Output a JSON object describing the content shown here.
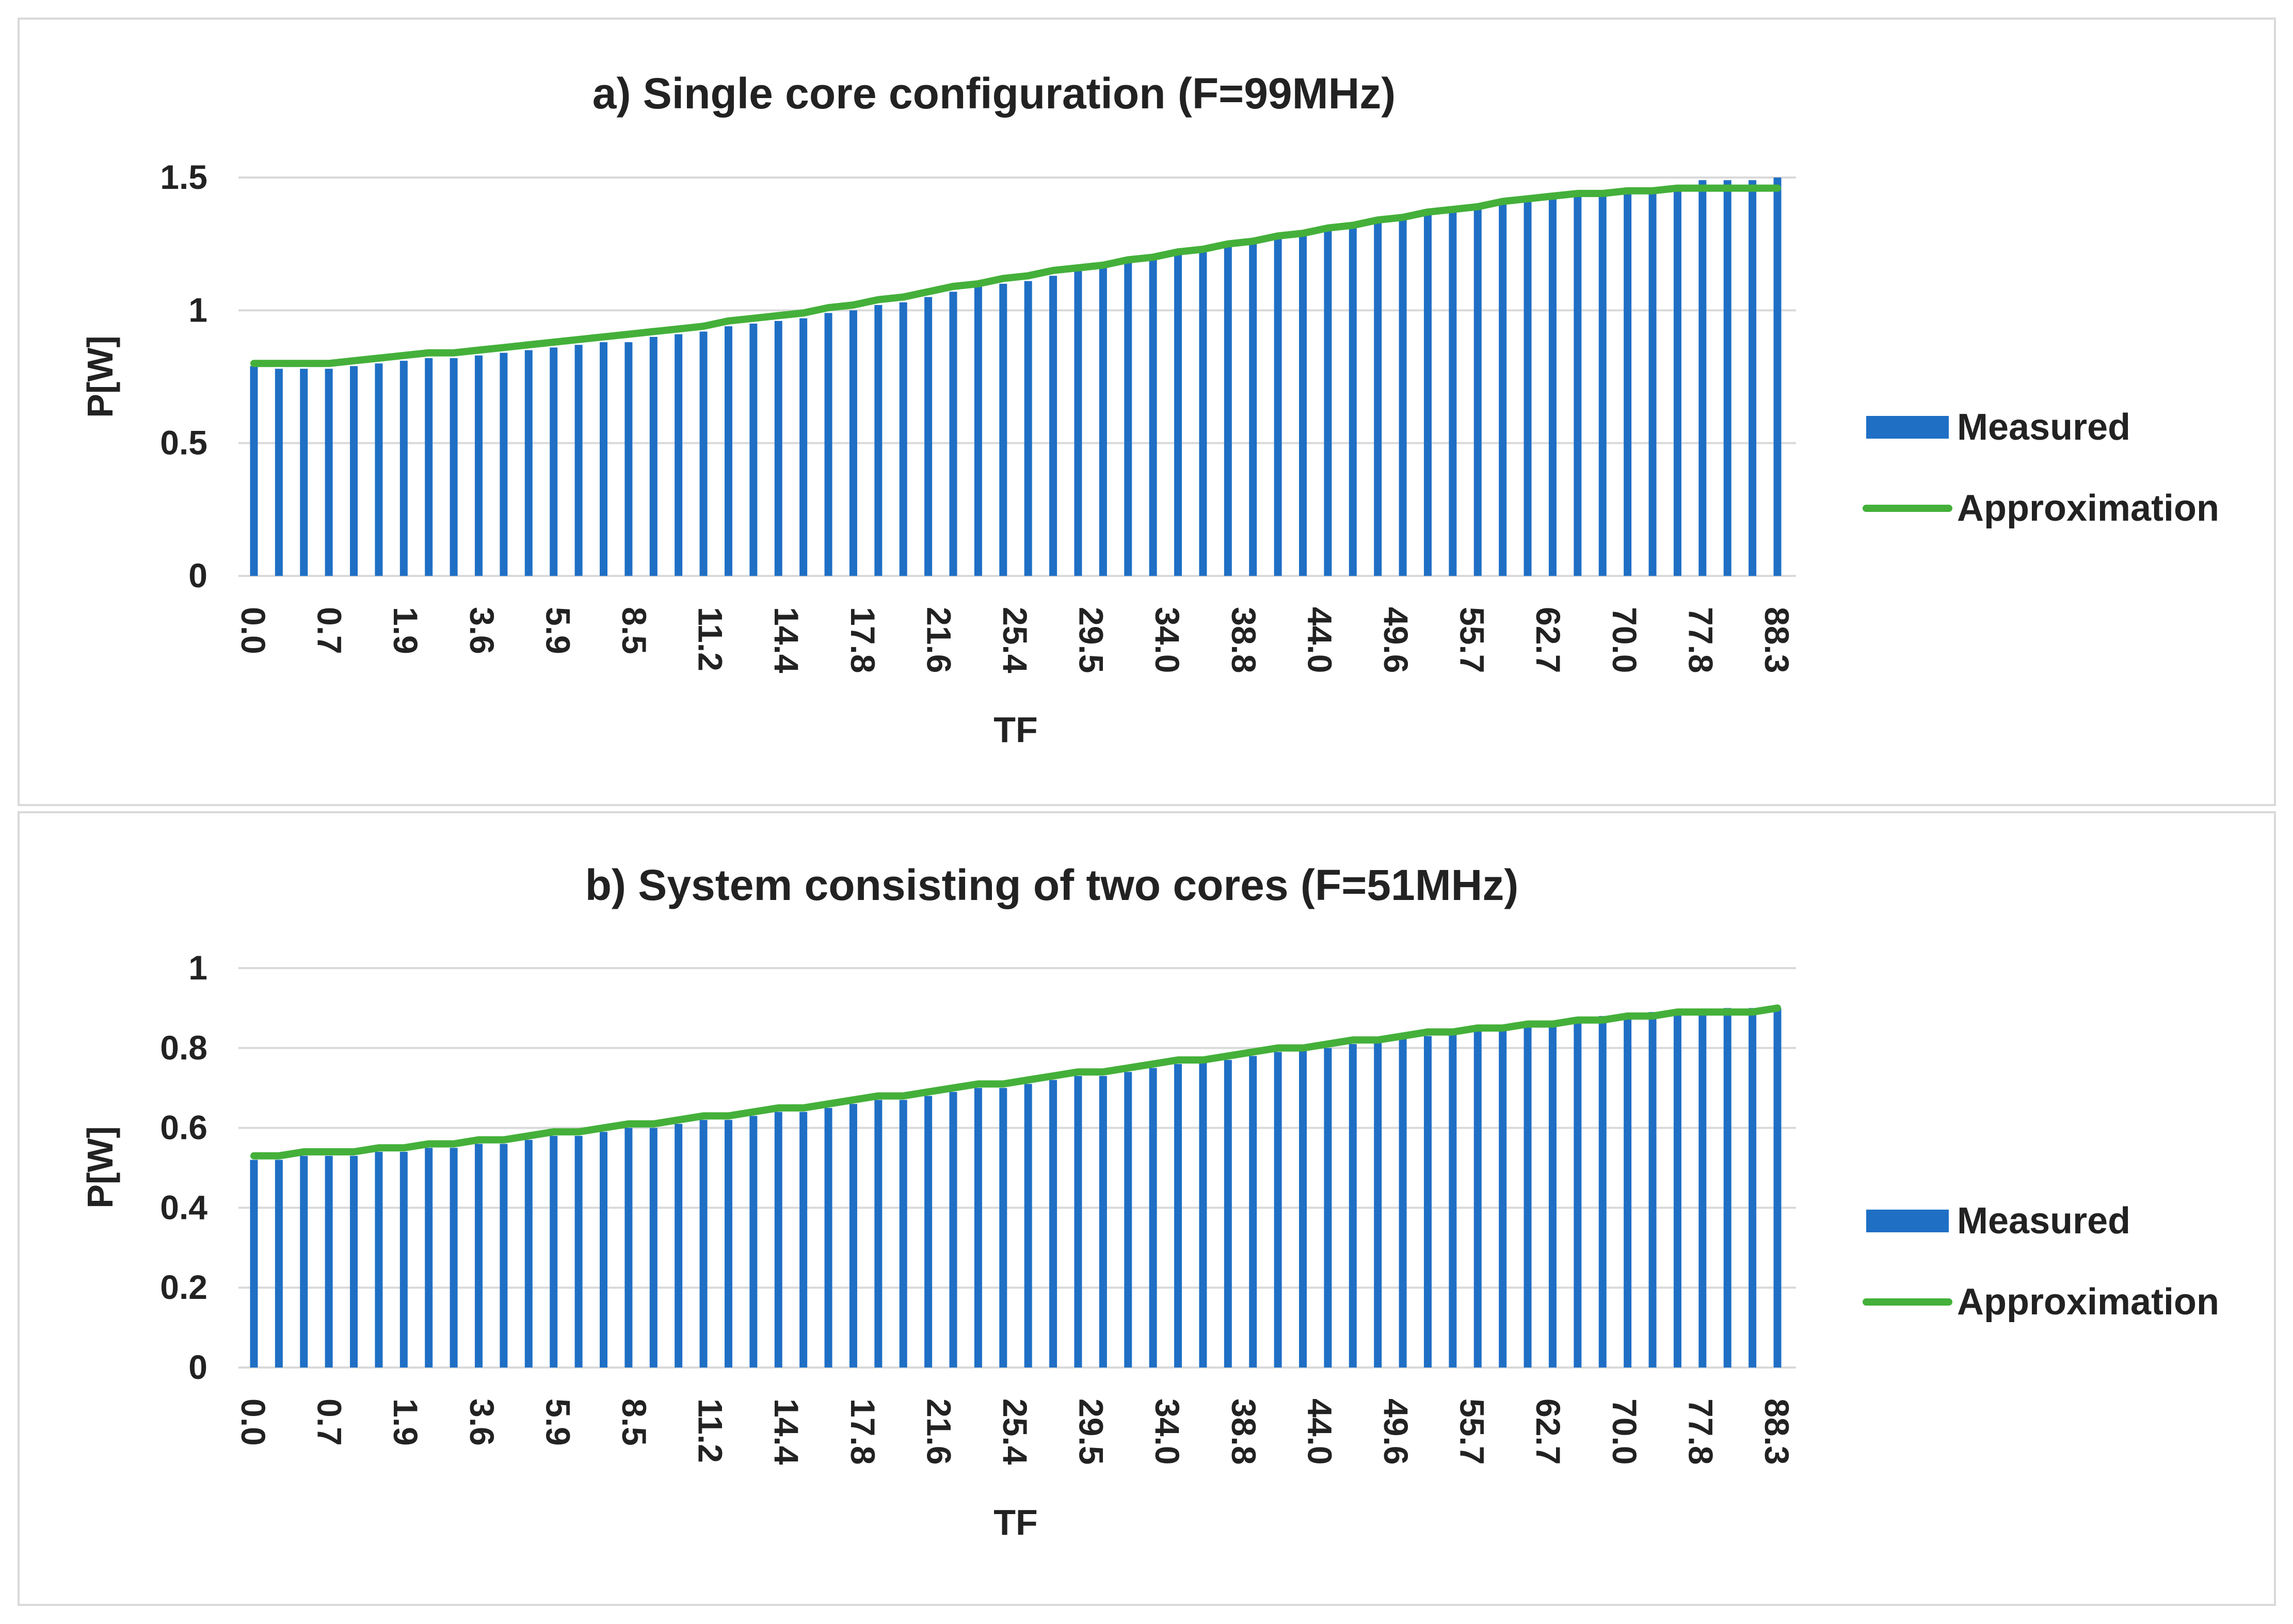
{
  "chart_data": [
    {
      "type": "bar",
      "title": "a) Single core configuration  (F=99MHz)",
      "xlabel": "TF",
      "ylabel": "P[W]",
      "ylim": [
        0,
        1.5
      ],
      "yticks": [
        0,
        0.5,
        1,
        1.5
      ],
      "ytick_labels": [
        "0",
        "0.5",
        "1",
        "1.5"
      ],
      "tick_labels": [
        "0.0",
        "0.7",
        "1.9",
        "3.6",
        "5.9",
        "8.5",
        "11.2",
        "14.4",
        "17.8",
        "21.6",
        "25.4",
        "29.5",
        "34.0",
        "38.8",
        "44.0",
        "49.6",
        "55.7",
        "62.7",
        "70.0",
        "77.8",
        "88.3"
      ],
      "grid": true,
      "legend_position": "right",
      "colors": {
        "measured": "#1f6fc5",
        "approximation": "#44b03a",
        "grid": "#d9d9d9"
      },
      "series": [
        {
          "name": "Measured",
          "type": "bar",
          "values": [
            0.79,
            0.78,
            0.78,
            0.78,
            0.79,
            0.8,
            0.81,
            0.82,
            0.82,
            0.83,
            0.84,
            0.85,
            0.86,
            0.87,
            0.88,
            0.88,
            0.9,
            0.91,
            0.92,
            0.94,
            0.95,
            0.96,
            0.97,
            0.99,
            1.0,
            1.02,
            1.03,
            1.05,
            1.07,
            1.09,
            1.1,
            1.11,
            1.13,
            1.15,
            1.16,
            1.18,
            1.19,
            1.21,
            1.22,
            1.24,
            1.26,
            1.27,
            1.29,
            1.31,
            1.32,
            1.34,
            1.35,
            1.37,
            1.38,
            1.4,
            1.41,
            1.42,
            1.43,
            1.44,
            1.44,
            1.45,
            1.46,
            1.47,
            1.49,
            1.49,
            1.49,
            1.5
          ]
        },
        {
          "name": "Approximation",
          "type": "line",
          "values": [
            0.8,
            0.8,
            0.8,
            0.8,
            0.81,
            0.82,
            0.83,
            0.84,
            0.84,
            0.85,
            0.86,
            0.87,
            0.88,
            0.89,
            0.9,
            0.91,
            0.92,
            0.93,
            0.94,
            0.96,
            0.97,
            0.98,
            0.99,
            1.01,
            1.02,
            1.04,
            1.05,
            1.07,
            1.09,
            1.1,
            1.12,
            1.13,
            1.15,
            1.16,
            1.17,
            1.19,
            1.2,
            1.22,
            1.23,
            1.25,
            1.26,
            1.28,
            1.29,
            1.31,
            1.32,
            1.34,
            1.35,
            1.37,
            1.38,
            1.39,
            1.41,
            1.42,
            1.43,
            1.44,
            1.44,
            1.45,
            1.45,
            1.46,
            1.46,
            1.46,
            1.46,
            1.46
          ]
        }
      ]
    },
    {
      "type": "bar",
      "title": "b) System consisting of two cores (F=51MHz)",
      "xlabel": "TF",
      "ylabel": "P[W]",
      "ylim": [
        0,
        1
      ],
      "yticks": [
        0,
        0.2,
        0.4,
        0.6,
        0.8,
        1
      ],
      "ytick_labels": [
        "0",
        "0.2",
        "0.4",
        "0.6",
        "0.8",
        "1"
      ],
      "tick_labels": [
        "0.0",
        "0.7",
        "1.9",
        "3.6",
        "5.9",
        "8.5",
        "11.2",
        "14.4",
        "17.8",
        "21.6",
        "25.4",
        "29.5",
        "34.0",
        "38.8",
        "44.0",
        "49.6",
        "55.7",
        "62.7",
        "70.0",
        "77.8",
        "88.3"
      ],
      "grid": true,
      "legend_position": "right",
      "colors": {
        "measured": "#1f6fc5",
        "approximation": "#44b03a",
        "grid": "#d9d9d9"
      },
      "series": [
        {
          "name": "Measured",
          "type": "bar",
          "values": [
            0.52,
            0.52,
            0.53,
            0.53,
            0.53,
            0.54,
            0.54,
            0.55,
            0.55,
            0.56,
            0.56,
            0.57,
            0.58,
            0.58,
            0.59,
            0.6,
            0.6,
            0.61,
            0.62,
            0.62,
            0.63,
            0.64,
            0.64,
            0.65,
            0.66,
            0.67,
            0.67,
            0.68,
            0.69,
            0.7,
            0.7,
            0.71,
            0.72,
            0.73,
            0.73,
            0.74,
            0.75,
            0.76,
            0.77,
            0.77,
            0.78,
            0.79,
            0.8,
            0.8,
            0.81,
            0.82,
            0.83,
            0.83,
            0.84,
            0.85,
            0.85,
            0.86,
            0.86,
            0.87,
            0.88,
            0.88,
            0.89,
            0.89,
            0.89,
            0.9,
            0.9,
            0.9
          ]
        },
        {
          "name": "Approximation",
          "type": "line",
          "values": [
            0.53,
            0.53,
            0.54,
            0.54,
            0.54,
            0.55,
            0.55,
            0.56,
            0.56,
            0.57,
            0.57,
            0.58,
            0.59,
            0.59,
            0.6,
            0.61,
            0.61,
            0.62,
            0.63,
            0.63,
            0.64,
            0.65,
            0.65,
            0.66,
            0.67,
            0.68,
            0.68,
            0.69,
            0.7,
            0.71,
            0.71,
            0.72,
            0.73,
            0.74,
            0.74,
            0.75,
            0.76,
            0.77,
            0.77,
            0.78,
            0.79,
            0.8,
            0.8,
            0.81,
            0.82,
            0.82,
            0.83,
            0.84,
            0.84,
            0.85,
            0.85,
            0.86,
            0.86,
            0.87,
            0.87,
            0.88,
            0.88,
            0.89,
            0.89,
            0.89,
            0.89,
            0.9
          ]
        }
      ]
    }
  ]
}
